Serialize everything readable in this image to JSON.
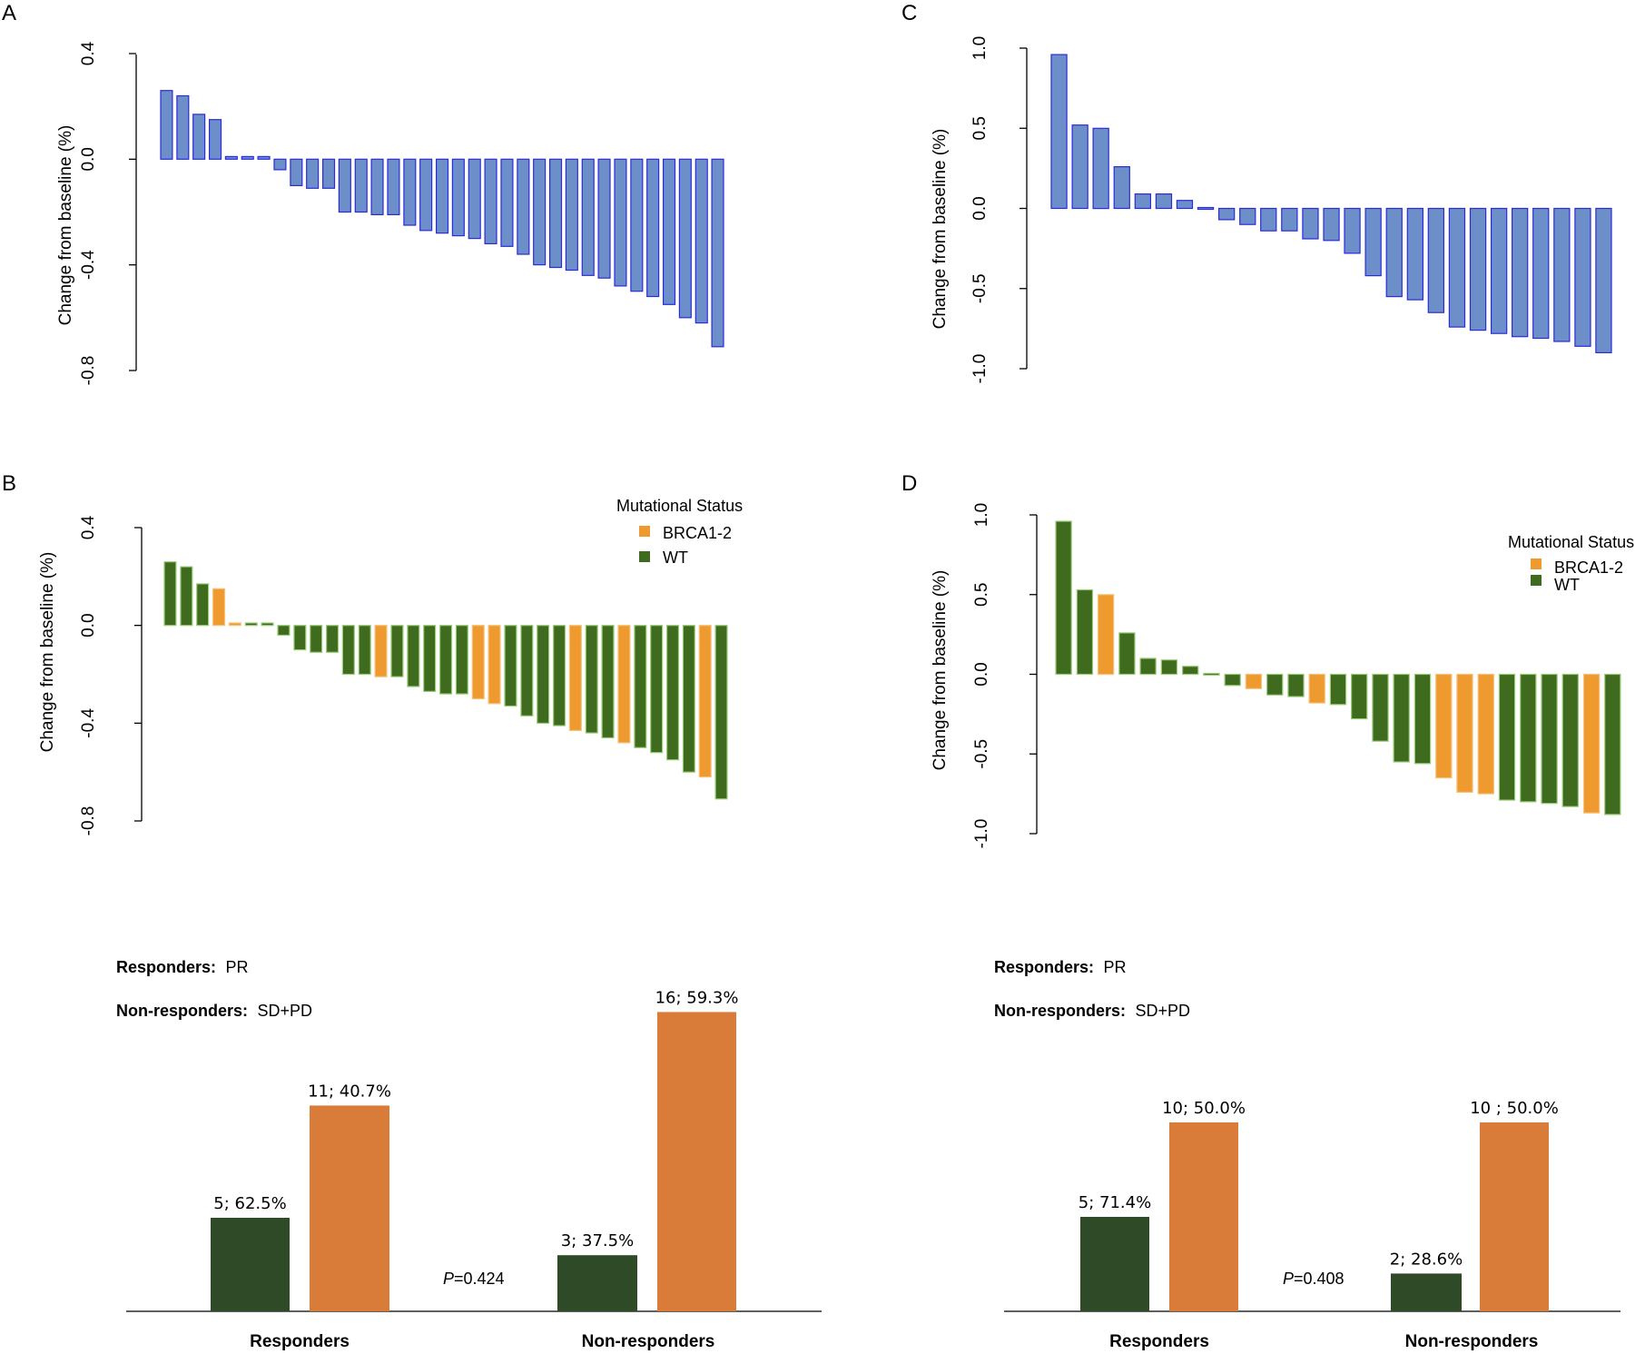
{
  "colors": {
    "blue_fill": "#6d8fc9",
    "blue_stroke": "#2b2bdc",
    "brca": "#ee9a2e",
    "wt": "#3f6b1f",
    "sum_wt": "#2e4a26",
    "sum_brca": "#d97c3a",
    "axis": "#000000"
  },
  "chart_data": [
    {
      "id": "A",
      "type": "bar",
      "panel_label": "A",
      "ylabel": "Change  from baseline  (%)",
      "ylim": [
        -0.8,
        0.4
      ],
      "yticks": [
        "-0.8",
        "-0.4",
        "0.0",
        "0.4"
      ],
      "ytick_values": [
        -0.8,
        -0.4,
        0.0,
        0.4
      ],
      "values": [
        0.26,
        0.24,
        0.17,
        0.15,
        0.01,
        0.01,
        0.01,
        -0.04,
        -0.1,
        -0.11,
        -0.11,
        -0.2,
        -0.2,
        -0.21,
        -0.21,
        -0.25,
        -0.27,
        -0.28,
        -0.29,
        -0.3,
        -0.32,
        -0.33,
        -0.36,
        -0.4,
        -0.41,
        -0.42,
        -0.44,
        -0.45,
        -0.48,
        -0.5,
        -0.52,
        -0.55,
        -0.6,
        -0.62,
        -0.71
      ]
    },
    {
      "id": "B",
      "type": "bar",
      "panel_label": "B",
      "ylabel": "Change  from baseline  (%)",
      "ylim": [
        -0.8,
        0.4
      ],
      "yticks": [
        "-0.8",
        "-0.4",
        "0.0",
        "0.4"
      ],
      "ytick_values": [
        -0.8,
        -0.4,
        0.0,
        0.4
      ],
      "legend": {
        "title": "Mutational  Status",
        "items": [
          "BRCA1-2",
          "WT"
        ],
        "position": "top-right"
      },
      "values": [
        0.26,
        0.24,
        0.17,
        0.15,
        0.01,
        0.01,
        0.01,
        -0.04,
        -0.1,
        -0.11,
        -0.11,
        -0.2,
        -0.2,
        -0.21,
        -0.21,
        -0.25,
        -0.27,
        -0.28,
        -0.28,
        -0.3,
        -0.32,
        -0.33,
        -0.37,
        -0.4,
        -0.41,
        -0.43,
        -0.44,
        -0.46,
        -0.48,
        -0.5,
        -0.52,
        -0.55,
        -0.6,
        -0.62,
        -0.71
      ],
      "groups": [
        "WT",
        "WT",
        "WT",
        "BRCA1-2",
        "BRCA1-2",
        "WT",
        "WT",
        "WT",
        "WT",
        "WT",
        "WT",
        "WT",
        "WT",
        "BRCA1-2",
        "WT",
        "WT",
        "WT",
        "WT",
        "WT",
        "BRCA1-2",
        "BRCA1-2",
        "WT",
        "WT",
        "WT",
        "WT",
        "BRCA1-2",
        "WT",
        "WT",
        "BRCA1-2",
        "WT",
        "WT",
        "WT",
        "WT",
        "BRCA1-2",
        "WT"
      ]
    },
    {
      "id": "C",
      "type": "bar",
      "panel_label": "C",
      "ylabel": "Change  from baseline  (%)",
      "ylim": [
        -1.0,
        1.0
      ],
      "yticks": [
        "-1.0",
        "-0.5",
        "0.0",
        "0.5",
        "1.0"
      ],
      "ytick_values": [
        -1.0,
        -0.5,
        0.0,
        0.5,
        1.0
      ],
      "values": [
        0.96,
        0.52,
        0.5,
        0.26,
        0.09,
        0.09,
        0.05,
        -0.01,
        -0.07,
        -0.1,
        -0.14,
        -0.14,
        -0.19,
        -0.2,
        -0.28,
        -0.42,
        -0.55,
        -0.57,
        -0.65,
        -0.74,
        -0.76,
        -0.78,
        -0.8,
        -0.81,
        -0.83,
        -0.86,
        -0.9
      ]
    },
    {
      "id": "D",
      "type": "bar",
      "panel_label": "D",
      "ylabel": "Change  from baseline  (%)",
      "ylim": [
        -1.0,
        1.0
      ],
      "yticks": [
        "-1.0",
        "-0.5",
        "0.0",
        "0.5",
        "1.0"
      ],
      "ytick_values": [
        -1.0,
        -0.5,
        0.0,
        0.5,
        1.0
      ],
      "legend": {
        "title": "Mutational  Status",
        "items": [
          "BRCA1-2",
          "WT"
        ],
        "position": "top-right"
      },
      "values": [
        0.96,
        0.53,
        0.5,
        0.26,
        0.1,
        0.09,
        0.05,
        -0.01,
        -0.07,
        -0.09,
        -0.13,
        -0.14,
        -0.18,
        -0.19,
        -0.28,
        -0.42,
        -0.55,
        -0.56,
        -0.65,
        -0.74,
        -0.75,
        -0.79,
        -0.8,
        -0.81,
        -0.83,
        -0.87,
        -0.88
      ],
      "groups": [
        "WT",
        "WT",
        "BRCA1-2",
        "WT",
        "WT",
        "WT",
        "WT",
        "WT",
        "WT",
        "BRCA1-2",
        "WT",
        "WT",
        "BRCA1-2",
        "WT",
        "WT",
        "WT",
        "WT",
        "WT",
        "BRCA1-2",
        "BRCA1-2",
        "BRCA1-2",
        "WT",
        "WT",
        "WT",
        "WT",
        "BRCA1-2",
        "WT"
      ]
    },
    {
      "id": "E",
      "type": "bar",
      "responders_label": "Responders:",
      "responders_def": "PR",
      "nonresponders_label": "Non-responders:",
      "nonresponders_def": "SD+PD",
      "pvalue_italic": "P",
      "pvalue_rest": "=0.424",
      "categories": [
        "Responders",
        "Non-responders"
      ],
      "series": [
        {
          "name": "BRCA1-2",
          "values": [
            5,
            3
          ],
          "labels": [
            "5; 62.5%",
            "3; 37.5%"
          ]
        },
        {
          "name": "WT",
          "values": [
            11,
            16
          ],
          "labels": [
            "11; 40.7%",
            "16; 59.3%"
          ]
        }
      ],
      "ylim": [
        0,
        18
      ]
    },
    {
      "id": "F",
      "type": "bar",
      "responders_label": "Responders:",
      "responders_def": "PR",
      "nonresponders_label": "Non-responders:",
      "nonresponders_def": "SD+PD",
      "pvalue_italic": "P",
      "pvalue_rest": "=0.408",
      "categories": [
        "Responders",
        "Non-responders"
      ],
      "series": [
        {
          "name": "BRCA1-2",
          "values": [
            5,
            2
          ],
          "labels": [
            "5; 71.4%",
            "2; 28.6%"
          ]
        },
        {
          "name": "WT",
          "values": [
            10,
            10
          ],
          "labels": [
            "10; 50.0%",
            "10 ; 50.0%"
          ]
        }
      ],
      "ylim": [
        0,
        13.8
      ]
    }
  ]
}
